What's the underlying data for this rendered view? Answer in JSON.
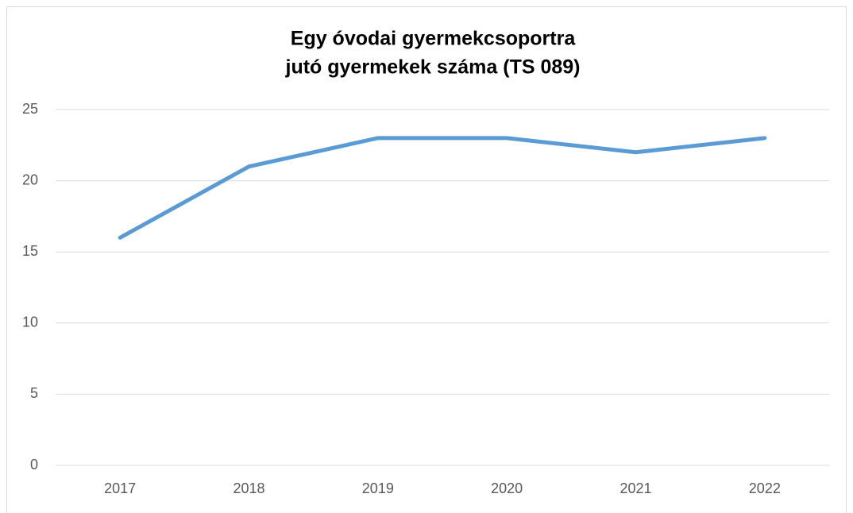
{
  "chart_data": {
    "type": "line",
    "title": [
      "Egy óvodai gyermekcsoportra",
      "jutó gyermekek száma (TS 089)"
    ],
    "categories": [
      "2017",
      "2018",
      "2019",
      "2020",
      "2021",
      "2022"
    ],
    "values": [
      16,
      21,
      23,
      23,
      22,
      23
    ],
    "color": "#5b9bd5",
    "ylim": [
      0,
      25
    ],
    "yticks": [
      0,
      5,
      10,
      15,
      20,
      25
    ],
    "grid": true
  }
}
